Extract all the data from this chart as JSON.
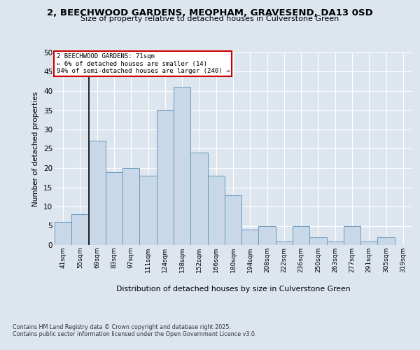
{
  "title_line1": "2, BEECHWOOD GARDENS, MEOPHAM, GRAVESEND, DA13 0SD",
  "title_line2": "Size of property relative to detached houses in Culverstone Green",
  "xlabel": "Distribution of detached houses by size in Culverstone Green",
  "ylabel": "Number of detached properties",
  "footer_line1": "Contains HM Land Registry data © Crown copyright and database right 2025.",
  "footer_line2": "Contains public sector information licensed under the Open Government Licence v3.0.",
  "bar_labels": [
    "41sqm",
    "55sqm",
    "69sqm",
    "83sqm",
    "97sqm",
    "111sqm",
    "124sqm",
    "138sqm",
    "152sqm",
    "166sqm",
    "180sqm",
    "194sqm",
    "208sqm",
    "222sqm",
    "236sqm",
    "250sqm",
    "263sqm",
    "277sqm",
    "291sqm",
    "305sqm",
    "319sqm"
  ],
  "bar_values": [
    6,
    8,
    27,
    19,
    20,
    18,
    35,
    41,
    24,
    18,
    13,
    4,
    5,
    1,
    5,
    2,
    1,
    5,
    1,
    2,
    0
  ],
  "bar_color": "#c8d8e8",
  "bar_edge_color": "#6699bb",
  "vline_color": "#000000",
  "annotation_text": "2 BEECHWOOD GARDENS: 71sqm\n← 6% of detached houses are smaller (14)\n94% of semi-detached houses are larger (240) →",
  "annotation_box_color": "#ffffff",
  "annotation_box_edge": "#cc0000",
  "ylim": [
    0,
    50
  ],
  "yticks": [
    0,
    5,
    10,
    15,
    20,
    25,
    30,
    35,
    40,
    45,
    50
  ],
  "bg_color": "#dde6ef",
  "plot_bg_color": "#dde6ef",
  "grid_color": "#ffffff"
}
